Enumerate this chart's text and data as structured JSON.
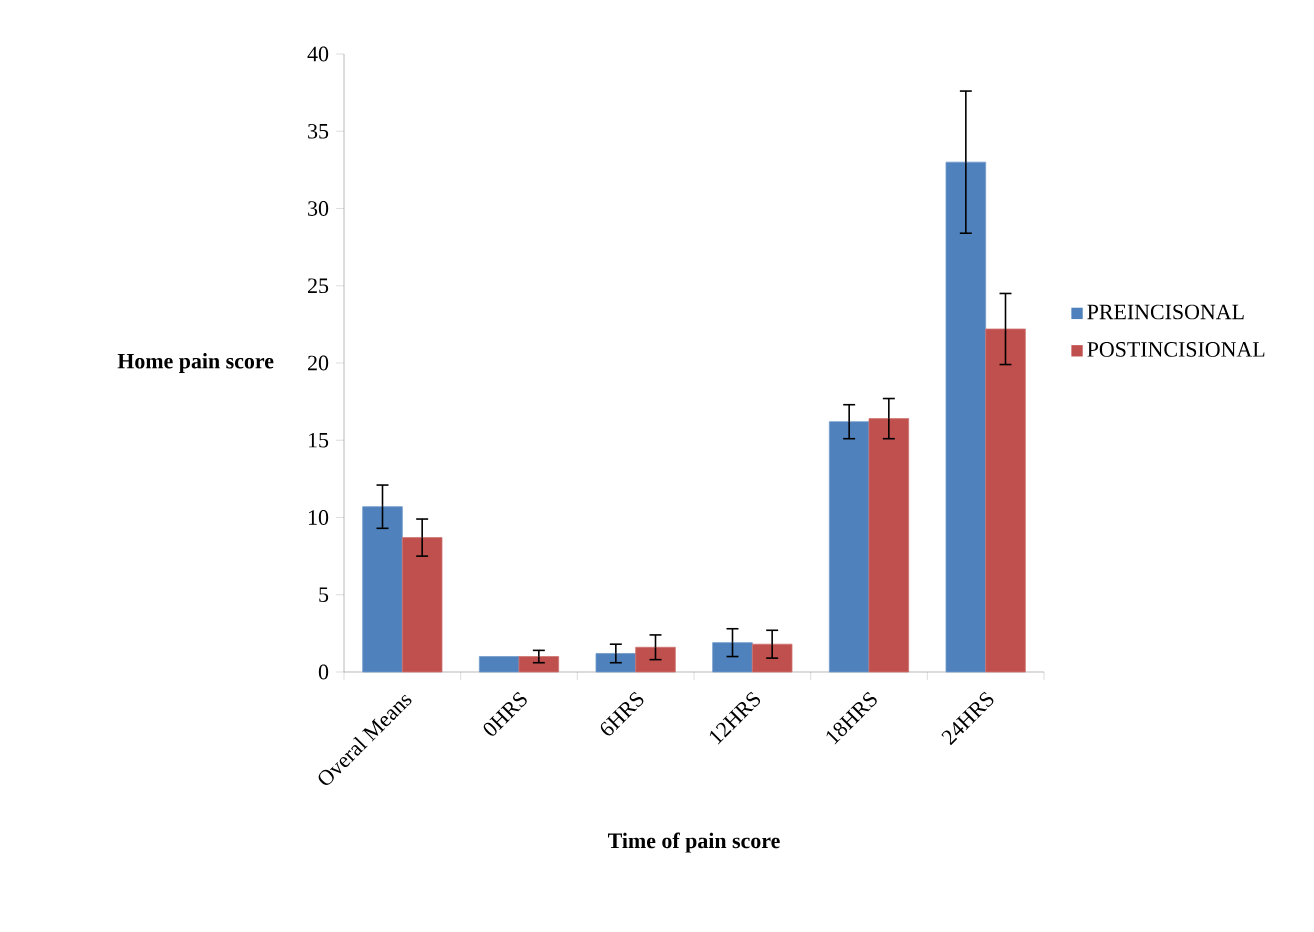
{
  "chart_data": {
    "type": "bar",
    "xlabel": "Time of pain score",
    "ylabel": "Home pain score",
    "categories": [
      "Overal Means",
      "0HRS",
      "6HRS",
      "12HRS",
      "18HRS",
      "24HRS"
    ],
    "series": [
      {
        "name": "PREINCISONAL",
        "color": "#4f81bd",
        "values": [
          10.7,
          1.0,
          1.2,
          1.9,
          16.2,
          33.0
        ],
        "errors": [
          1.4,
          null,
          0.6,
          0.9,
          1.1,
          4.6
        ]
      },
      {
        "name": "POSTINCISIONAL",
        "color": "#c0504d",
        "values": [
          8.7,
          1.0,
          1.6,
          1.8,
          16.4,
          22.2
        ],
        "errors": [
          1.2,
          0.4,
          0.8,
          0.9,
          1.3,
          2.3
        ]
      }
    ],
    "ylim": [
      0,
      40
    ],
    "yticks": [
      0,
      5,
      10,
      15,
      20,
      25,
      30,
      35,
      40
    ],
    "grid": false,
    "legend": "right"
  }
}
